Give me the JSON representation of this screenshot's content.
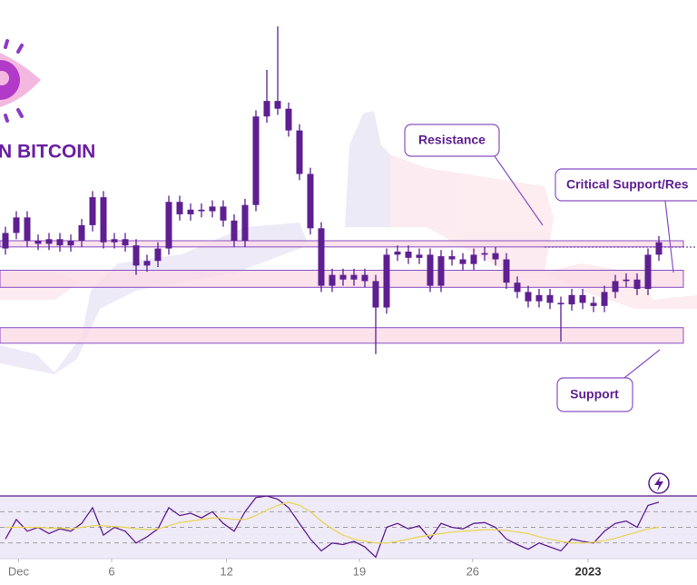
{
  "brand": "N BITCOIN",
  "chart_data": {
    "type": "candlestick",
    "color": "#5e1f91",
    "xlim": [
      -0.5,
      63.5
    ],
    "xticks": [
      {
        "value": 1.2,
        "label": "Dec"
      },
      {
        "value": 9.75,
        "label": "6"
      },
      {
        "value": 20.3,
        "label": "12"
      },
      {
        "value": 32.5,
        "label": "19"
      },
      {
        "value": 42.9,
        "label": "26"
      },
      {
        "value": 53.5,
        "label": "2023"
      }
    ],
    "ylim": [
      15500,
      18600
    ],
    "open": [
      17000,
      17100,
      17200,
      17050,
      17030,
      17060,
      17020,
      17050,
      17150,
      17330,
      17040,
      17060,
      17020,
      16890,
      16920,
      17000,
      17300,
      17220,
      17250,
      17240,
      17270,
      17180,
      17050,
      17280,
      17850,
      17950,
      17900,
      17760,
      17480,
      17130,
      16760,
      16830,
      16800,
      16830,
      16790,
      16620,
      16960,
      16980,
      16940,
      16960,
      16760,
      16950,
      16930,
      16900,
      16960,
      16970,
      16930,
      16780,
      16720,
      16660,
      16700,
      16650,
      16640,
      16700,
      16650,
      16630,
      16720,
      16790,
      16800,
      16740,
      16960
    ],
    "high": [
      17140,
      17240,
      17240,
      17090,
      17100,
      17100,
      17090,
      17190,
      17370,
      17370,
      17100,
      17100,
      17060,
      16960,
      17040,
      17340,
      17340,
      17290,
      17290,
      17310,
      17310,
      17220,
      17320,
      17890,
      18150,
      18430,
      17940,
      17800,
      17520,
      17170,
      16870,
      16870,
      16870,
      16870,
      16830,
      17000,
      17020,
      17020,
      17000,
      17000,
      16990,
      16990,
      16970,
      17000,
      17010,
      17010,
      16970,
      16820,
      16760,
      16740,
      16740,
      16690,
      16740,
      16740,
      16690,
      16760,
      16830,
      16840,
      16840,
      17000,
      17080
    ],
    "low": [
      16960,
      17060,
      17010,
      16990,
      16990,
      16980,
      16980,
      17010,
      17110,
      17000,
      17000,
      16980,
      16830,
      16850,
      16880,
      16960,
      17180,
      17180,
      17200,
      17200,
      17140,
      17010,
      17010,
      17240,
      17810,
      17860,
      17720,
      17440,
      17090,
      16720,
      16720,
      16760,
      16760,
      16750,
      16320,
      16580,
      16920,
      16900,
      16900,
      16720,
      16720,
      16890,
      16860,
      16860,
      16920,
      16890,
      16740,
      16680,
      16620,
      16620,
      16610,
      16400,
      16600,
      16610,
      16590,
      16590,
      16680,
      16750,
      16700,
      16700,
      16920
    ],
    "close": [
      17100,
      17200,
      17050,
      17030,
      17060,
      17020,
      17050,
      17150,
      17330,
      17040,
      17060,
      17020,
      16890,
      16920,
      17000,
      17300,
      17220,
      17250,
      17240,
      17270,
      17180,
      17050,
      17280,
      17850,
      17950,
      17900,
      17760,
      17480,
      17130,
      16760,
      16830,
      16800,
      16830,
      16790,
      16620,
      16960,
      16980,
      16940,
      16960,
      16760,
      16950,
      16930,
      16900,
      16960,
      16970,
      16930,
      16780,
      16720,
      16660,
      16700,
      16650,
      16640,
      16700,
      16650,
      16630,
      16720,
      16790,
      16800,
      16740,
      16960,
      17040
    ],
    "zones": [
      {
        "label": "Resistance",
        "low": 17010,
        "high": 17050
      },
      {
        "label": "Critical Support/Res",
        "low": 16750,
        "high": 16860
      },
      {
        "label": "Support",
        "low": 16390,
        "high": 16490
      }
    ],
    "rsi": {
      "ylim": [
        10,
        90
      ],
      "yticks": [
        30,
        50,
        70
      ],
      "series": [
        {
          "color": "#5e1f91",
          "values": [
            35,
            60,
            45,
            50,
            42,
            48,
            45,
            55,
            75,
            40,
            50,
            45,
            30,
            38,
            48,
            75,
            65,
            68,
            62,
            70,
            55,
            45,
            70,
            88,
            90,
            86,
            75,
            55,
            35,
            20,
            30,
            28,
            32,
            25,
            12,
            50,
            55,
            48,
            52,
            35,
            55,
            50,
            48,
            55,
            56,
            50,
            35,
            28,
            22,
            30,
            25,
            20,
            35,
            32,
            30,
            45,
            55,
            58,
            50,
            78,
            82
          ]
        },
        {
          "color": "#e8d44d",
          "values": [
            50,
            50,
            50,
            50,
            49,
            49,
            48,
            50,
            52,
            52,
            51,
            50,
            48,
            47,
            48,
            52,
            56,
            58,
            60,
            62,
            62,
            60,
            60,
            65,
            72,
            78,
            82,
            78,
            70,
            58,
            48,
            40,
            35,
            32,
            30,
            30,
            32,
            35,
            38,
            40,
            42,
            44,
            45,
            46,
            47,
            47,
            46,
            44,
            42,
            38,
            35,
            32,
            30,
            30,
            31,
            33,
            36,
            40,
            44,
            48,
            50
          ]
        }
      ]
    }
  }
}
